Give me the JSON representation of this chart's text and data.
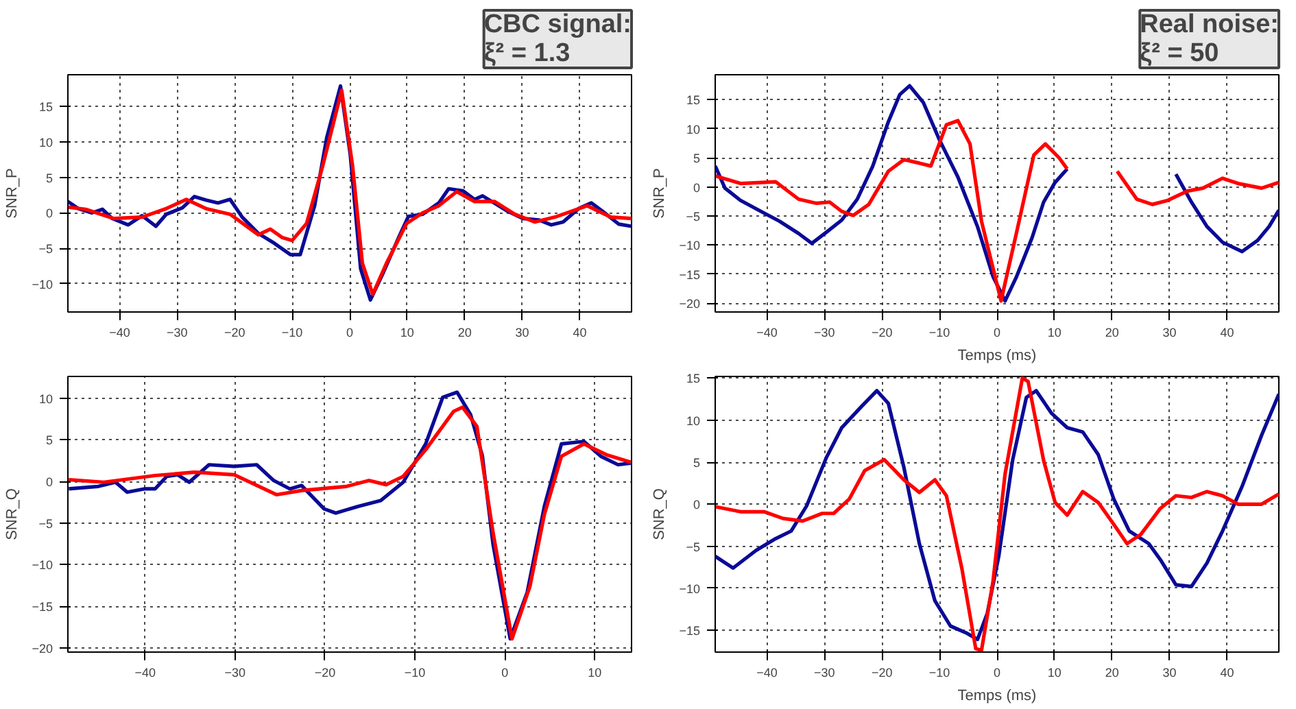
{
  "chart_data": [
    {
      "type": "line",
      "ylabel": "SNR_P",
      "xlim": [
        -49,
        49
      ],
      "ylim": [
        -14,
        19.5
      ],
      "xticks": [
        -40,
        -30,
        -20,
        -10,
        0,
        10,
        20,
        30,
        40
      ],
      "yticks": [
        -10,
        -5,
        0,
        5,
        10,
        15
      ],
      "grid": true,
      "annotations": [
        "CBC signal:\nξ² = 1.3"
      ],
      "series": [
        {
          "color": "#0a0a96",
          "x": [
            -49,
            -47.2,
            -44.8,
            -43,
            -41.3,
            -38.5,
            -36.1,
            -33.7,
            -31.9,
            -29.1,
            -27,
            -25,
            -22.9,
            -20.8,
            -18.7,
            -15.9,
            -13.1,
            -10.3,
            -8.6,
            -6.1,
            -4,
            -1.6,
            0.1,
            1.9,
            3.6,
            5.7,
            8.5,
            10.2,
            12.7,
            15.5,
            17.2,
            19.7,
            21.7,
            23.1,
            27.3,
            30.1,
            32.9,
            35,
            37.1,
            39.8,
            42,
            44,
            46.8,
            49
          ],
          "values": [
            1.6,
            0.6,
            0,
            0.5,
            -0.8,
            -1.7,
            -0.4,
            -1.9,
            -0.2,
            0.7,
            2.3,
            1.8,
            1.4,
            1.9,
            -0.6,
            -2.9,
            -4.3,
            -5.9,
            -5.9,
            1,
            10.6,
            17.9,
            8.2,
            -7.9,
            -12.3,
            -8.7,
            -3.5,
            -0.5,
            -0.2,
            1.4,
            3.4,
            3.1,
            1.9,
            2.4,
            0.3,
            -0.8,
            -1,
            -1.7,
            -1.3,
            0.6,
            1.4,
            0.2,
            -1.6,
            -1.9
          ]
        },
        {
          "color": "#ff0000",
          "x": [
            -49,
            -45.9,
            -41,
            -36.1,
            -31.9,
            -28.4,
            -25,
            -20.8,
            -15.9,
            -13.8,
            -11.7,
            -10,
            -7.5,
            -4.7,
            -1.4,
            0.5,
            2.2,
            4,
            6.4,
            9.9,
            12.7,
            15.5,
            18.6,
            21.7,
            25.2,
            28.7,
            32.2,
            35.7,
            41.3,
            45.4,
            49
          ],
          "values": [
            0.8,
            0.5,
            -0.8,
            -0.6,
            0.6,
            1.9,
            0.6,
            -0.2,
            -3.1,
            -2.3,
            -3.5,
            -3.9,
            -1.5,
            6.6,
            17.3,
            6.6,
            -7.1,
            -11.5,
            -7.1,
            -1.5,
            0,
            1,
            3,
            1.6,
            1.6,
            -0.2,
            -1.3,
            -0.6,
            1,
            -0.6,
            -0.8
          ]
        }
      ]
    },
    {
      "type": "line",
      "ylabel": "SNR_P",
      "xlabel": "Temps (ms)",
      "xlim": [
        -49,
        49
      ],
      "ylim": [
        -21.5,
        19.3
      ],
      "xticks": [
        -40,
        -30,
        -20,
        -10,
        0,
        10,
        20,
        30,
        40
      ],
      "yticks": [
        -20,
        -15,
        -10,
        -5,
        0,
        5,
        10,
        15
      ],
      "grid": true,
      "annotations": [
        "Real noise:\nξ² = 50"
      ],
      "series": [
        {
          "color": "#0a0a96",
          "x": [
            -49,
            -47.3,
            -44.6,
            -40.5,
            -37.8,
            -34.5,
            -32.2,
            -29.7,
            -27,
            -24.3,
            -21.6,
            -18.9,
            -16.9,
            -15.2,
            -12.8,
            -10.1,
            -6.8,
            -3.4,
            -0.7,
            1.4,
            3.4,
            6.1,
            8.1,
            10.1,
            12.2,
            20,
            31.1,
            33.8,
            36.5,
            39.2,
            42.6,
            45.3,
            47.3,
            49
          ],
          "values": [
            3.6,
            -0.2,
            -2.3,
            -4.5,
            -5.9,
            -8,
            -9.7,
            -7.8,
            -5.7,
            -2.1,
            3.6,
            11.2,
            15.9,
            17.4,
            14.5,
            8.3,
            1.7,
            -6.8,
            -15.4,
            -19.6,
            -15.4,
            -8.7,
            -2.6,
            0.8,
            3.1,
            null,
            2.2,
            -2.6,
            -6.8,
            -9.5,
            -11.1,
            -9.2,
            -6.8,
            -4
          ]
        },
        {
          "color": "#ff0000",
          "x": [
            -49,
            -44.6,
            -38.5,
            -34.5,
            -31.4,
            -29.1,
            -27,
            -25,
            -22.3,
            -18.9,
            -16.2,
            -13.5,
            -11.5,
            -8.8,
            -6.8,
            -4.7,
            -2.7,
            0.7,
            3.4,
            6.4,
            8.4,
            10.8,
            12.2,
            16,
            20.9,
            24.3,
            27,
            29.7,
            33.1,
            35.8,
            39.2,
            41.9,
            46,
            49
          ],
          "values": [
            1.9,
            0.6,
            0.9,
            -2.1,
            -2.8,
            -2.6,
            -4.2,
            -4.9,
            -3,
            2.7,
            4.7,
            4.1,
            3.6,
            10.7,
            11.4,
            7.4,
            -5.9,
            -19.6,
            -7.8,
            5.5,
            7.4,
            5,
            3.1,
            null,
            2.7,
            -2.1,
            -3,
            -2.3,
            -0.7,
            -0.2,
            1.5,
            0.6,
            -0.2,
            0.8
          ]
        }
      ]
    },
    {
      "type": "line",
      "ylabel": "SNR_Q",
      "xlim": [
        -48.6,
        14.1
      ],
      "ylim": [
        -20.5,
        12.6
      ],
      "xticks": [
        -40,
        -30,
        -20,
        -10,
        0,
        10
      ],
      "yticks": [
        -20,
        -15,
        -10,
        -5,
        0,
        5,
        10
      ],
      "grid": true,
      "series": [
        {
          "color": "#0a0a96",
          "x": [
            -48.5,
            -45.2,
            -43.3,
            -42,
            -40.1,
            -38.9,
            -37.6,
            -36.4,
            -35.1,
            -32.9,
            -30.1,
            -27.6,
            -25.7,
            -23.9,
            -22.6,
            -20.1,
            -18.8,
            -16.3,
            -13.8,
            -11.3,
            -8.8,
            -6.9,
            -5.3,
            -3.8,
            -2.5,
            -1.3,
            0.6,
            2.5,
            4.4,
            6.3,
            8.8,
            10.7,
            12.6,
            14
          ],
          "values": [
            -0.9,
            -0.6,
            -0.1,
            -1.3,
            -0.9,
            -0.9,
            0.6,
            0.8,
            -0.1,
            2,
            1.8,
            2,
            0.1,
            -0.9,
            -0.5,
            -3.3,
            -3.8,
            -3,
            -2.3,
            -0.1,
            4.5,
            10.1,
            10.7,
            8,
            3.1,
            -7.6,
            -18.9,
            -13.3,
            -3,
            4.5,
            4.8,
            3,
            2,
            2.2
          ]
        },
        {
          "color": "#ff0000",
          "x": [
            -48.5,
            -44.6,
            -38.9,
            -34.5,
            -30.1,
            -25.4,
            -22.6,
            -17.6,
            -15.1,
            -13.2,
            -11.3,
            -8.8,
            -5.7,
            -4.7,
            -3.1,
            -1.3,
            0.8,
            2.8,
            4.4,
            6.3,
            8.8,
            11.3,
            14
          ],
          "values": [
            0.2,
            -0.1,
            0.7,
            1.1,
            0.8,
            -1.6,
            -1.1,
            -0.6,
            0.1,
            -0.4,
            0.6,
            3.8,
            8.4,
            8.9,
            6.6,
            -6.2,
            -18.9,
            -12.6,
            -4,
            3,
            4.5,
            3.2,
            2.3
          ]
        }
      ]
    },
    {
      "type": "line",
      "ylabel": "SNR_Q",
      "xlabel": "Temps (ms)",
      "xlim": [
        -49,
        49
      ],
      "ylim": [
        -17.6,
        15.2
      ],
      "xticks": [
        -40,
        -30,
        -20,
        -10,
        0,
        10,
        20,
        30,
        40
      ],
      "yticks": [
        -15,
        -10,
        -5,
        0,
        5,
        10,
        15
      ],
      "grid": true,
      "series": [
        {
          "color": "#0a0a96",
          "x": [
            -49,
            -45.9,
            -41.9,
            -38.5,
            -35.8,
            -33.1,
            -29.7,
            -27,
            -23.6,
            -20.9,
            -18.9,
            -16.2,
            -13.5,
            -10.8,
            -8.1,
            -5.4,
            -3.4,
            -1.7,
            0.3,
            2.7,
            5.1,
            6.8,
            9.5,
            12.2,
            14.9,
            17.6,
            20.3,
            23,
            26.4,
            28.4,
            31.1,
            33.8,
            36.5,
            39.2,
            42.6,
            46,
            49
          ],
          "values": [
            -6.2,
            -7.6,
            -5.5,
            -4.1,
            -3.2,
            -0.2,
            5.5,
            9.1,
            11.6,
            13.5,
            12,
            4.4,
            -4.7,
            -11.5,
            -14.5,
            -15.3,
            -16.1,
            -13,
            -6.2,
            5.2,
            12.7,
            13.5,
            10.8,
            9.1,
            8.6,
            5.9,
            0.6,
            -3.2,
            -4.7,
            -6.6,
            -9.6,
            -9.8,
            -7,
            -3.2,
            2.1,
            8.2,
            13.1
          ]
        },
        {
          "color": "#ff0000",
          "x": [
            -49,
            -44.6,
            -40.5,
            -37.2,
            -33.8,
            -30.4,
            -28.4,
            -25.7,
            -23,
            -19.6,
            -16.2,
            -13.5,
            -10.8,
            -8.8,
            -6.1,
            -3.7,
            -2.7,
            -0.7,
            1.4,
            4.4,
            5.4,
            8.1,
            10.1,
            12.2,
            14.9,
            17.6,
            20.3,
            22.6,
            25,
            28.4,
            31.1,
            33.8,
            36.5,
            39.2,
            41.9,
            46,
            49
          ],
          "values": [
            -0.3,
            -0.9,
            -0.9,
            -1.7,
            -2,
            -1.1,
            -1.1,
            0.6,
            4,
            5.3,
            2.9,
            1.4,
            2.9,
            1,
            -7.7,
            -17.2,
            -17.4,
            -9.2,
            3.6,
            15,
            14.6,
            5.2,
            0.2,
            -1.3,
            1.5,
            0.2,
            -2.4,
            -4.7,
            -3.6,
            -0.5,
            1,
            0.8,
            1.5,
            1,
            0,
            0,
            1.2
          ]
        }
      ]
    }
  ]
}
